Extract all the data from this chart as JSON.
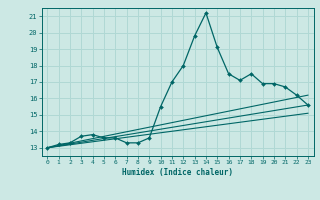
{
  "xlabel": "Humidex (Indice chaleur)",
  "ylabel": "",
  "bg_color": "#cce8e4",
  "line_color": "#006666",
  "grid_color": "#b0d8d4",
  "xlim": [
    -0.5,
    23.5
  ],
  "ylim": [
    12.5,
    21.5
  ],
  "xticks": [
    0,
    1,
    2,
    3,
    4,
    5,
    6,
    7,
    8,
    9,
    10,
    11,
    12,
    13,
    14,
    15,
    16,
    17,
    18,
    19,
    20,
    21,
    22,
    23
  ],
  "yticks": [
    13,
    14,
    15,
    16,
    17,
    18,
    19,
    20,
    21
  ],
  "line1_x": [
    0,
    1,
    2,
    3,
    4,
    5,
    6,
    7,
    8,
    9,
    10,
    11,
    12,
    13,
    14,
    15,
    16,
    17,
    18,
    19,
    20,
    21,
    22,
    23
  ],
  "line1_y": [
    13.0,
    13.2,
    13.3,
    13.7,
    13.8,
    13.6,
    13.6,
    13.3,
    13.3,
    13.6,
    15.5,
    17.0,
    18.0,
    19.8,
    21.2,
    19.1,
    17.5,
    17.1,
    17.5,
    16.9,
    16.9,
    16.7,
    16.2,
    15.6
  ],
  "line2_x": [
    0,
    23
  ],
  "line2_y": [
    13.0,
    15.6
  ],
  "line3_x": [
    0,
    23
  ],
  "line3_y": [
    13.0,
    16.2
  ],
  "line4_x": [
    0,
    23
  ],
  "line4_y": [
    13.0,
    15.1
  ]
}
